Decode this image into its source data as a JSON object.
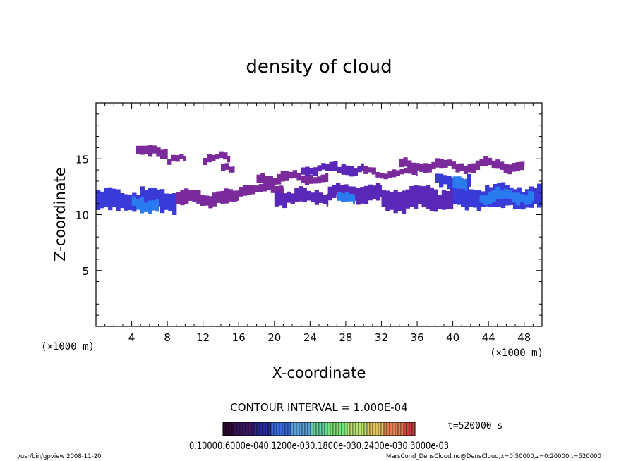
{
  "chart_data": {
    "type": "heatmap",
    "title": "density of cloud",
    "xlabel": "X-coordinate",
    "ylabel": "Z-coordinate",
    "x_unit": "(×1000 m)",
    "y_unit": "(×1000 m)",
    "xlim": [
      0,
      50
    ],
    "ylim": [
      0,
      20
    ],
    "x_ticks": [
      4,
      8,
      12,
      16,
      20,
      24,
      28,
      32,
      36,
      40,
      44,
      48
    ],
    "y_ticks": [
      5,
      10,
      15
    ],
    "contour_interval": "CONTOUR INTERVAL = 1.000E-04",
    "time_label": "t=520000 s",
    "colorbar": {
      "labels": [
        "0.1000",
        "0.6000e-04",
        "0.1200e-03",
        "0.1800e-03",
        "0.2400e-03",
        "0.3000e-03"
      ],
      "label_text": "0.10000.6000e-040.1200e-030.1800e-030.2400e-030.3000e-03",
      "colors": [
        "#2a0a30",
        "#3a1860",
        "#2a2a9a",
        "#3a6ad8",
        "#5aa0d8",
        "#6ad0a0",
        "#7ae078",
        "#b8e070",
        "#e0c060",
        "#e08050",
        "#d04040"
      ]
    },
    "value_colors": {
      "low": "#7a2a9a",
      "mid": "#5a28b8",
      "high": "#3a3ad8",
      "peak": "#2a7af0"
    },
    "regions": [
      {
        "x": [
          0,
          9
        ],
        "z_center": 11.3,
        "half_width": 0.9,
        "level": "high"
      },
      {
        "x": [
          9,
          16
        ],
        "z_center": 11.5,
        "half_width": 0.6,
        "level": "low"
      },
      {
        "x": [
          16,
          21
        ],
        "z_center": 12.3,
        "half_width": 0.4,
        "level": "low"
      },
      {
        "x": [
          20,
          26
        ],
        "z_center": 11.6,
        "half_width": 0.6,
        "level": "mid"
      },
      {
        "x": [
          26,
          32
        ],
        "z_center": 12.0,
        "half_width": 0.7,
        "level": "mid"
      },
      {
        "x": [
          32,
          40
        ],
        "z_center": 11.4,
        "half_width": 0.9,
        "level": "mid"
      },
      {
        "x": [
          40,
          50
        ],
        "z_center": 11.6,
        "half_width": 1.0,
        "level": "high"
      },
      {
        "x": [
          4.5,
          8
        ],
        "z_center": 15.6,
        "half_width": 0.5,
        "level": "low"
      },
      {
        "x": [
          8,
          10
        ],
        "z_center": 14.9,
        "half_width": 0.25,
        "level": "low"
      },
      {
        "x": [
          12,
          15
        ],
        "z_center": 15.0,
        "half_width": 0.3,
        "level": "low"
      },
      {
        "x": [
          14,
          15.5
        ],
        "z_center": 14.3,
        "half_width": 0.3,
        "level": "low"
      },
      {
        "x": [
          18,
          26
        ],
        "z_center": 13.3,
        "half_width": 0.4,
        "level": "low"
      },
      {
        "x": [
          23,
          30
        ],
        "z_center": 14.1,
        "half_width": 0.4,
        "level": "mid"
      },
      {
        "x": [
          30,
          36
        ],
        "z_center": 13.8,
        "half_width": 0.3,
        "level": "low"
      },
      {
        "x": [
          34,
          48
        ],
        "z_center": 14.4,
        "half_width": 0.4,
        "level": "low"
      },
      {
        "x": [
          38,
          42
        ],
        "z_center": 13.0,
        "half_width": 0.5,
        "level": "high"
      },
      {
        "x": [
          4,
          7
        ],
        "z_center": 11.0,
        "half_width": 0.6,
        "level": "peak"
      },
      {
        "x": [
          27,
          29
        ],
        "z_center": 11.5,
        "half_width": 0.4,
        "level": "peak"
      },
      {
        "x": [
          43,
          49
        ],
        "z_center": 11.6,
        "half_width": 0.5,
        "level": "peak"
      },
      {
        "x": [
          40,
          41.5
        ],
        "z_center": 12.7,
        "half_width": 0.5,
        "level": "peak"
      }
    ]
  },
  "footer": {
    "left": "/usr/bin/gpview   2008-11-20",
    "right": "MarsCond_DensCloud.nc@DensCloud,x=0:50000,z=0:20000,t=520000"
  }
}
